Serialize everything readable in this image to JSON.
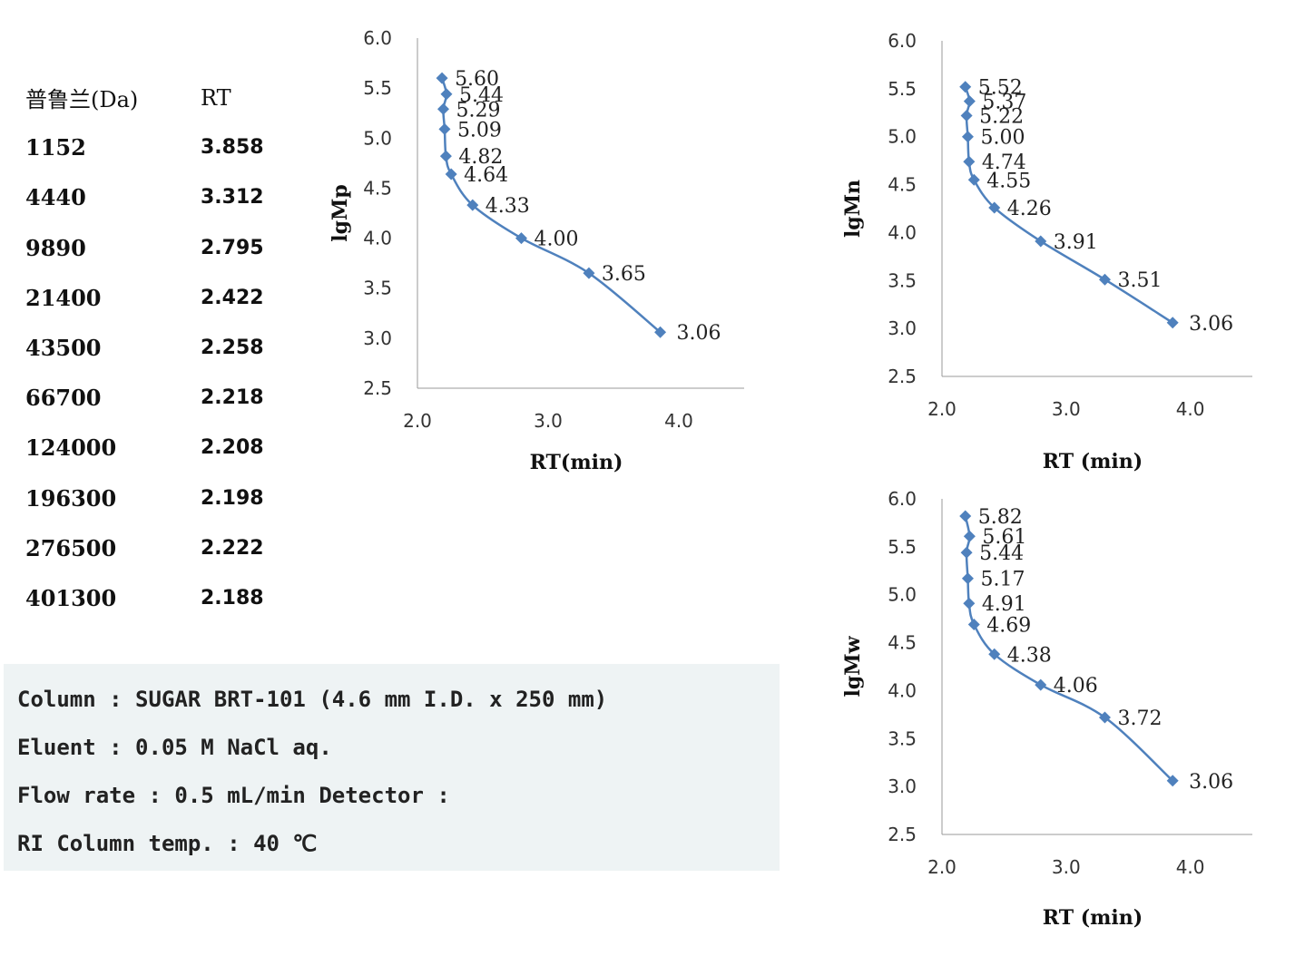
{
  "standards_table": {
    "header": {
      "name": "普鲁兰(Da)",
      "rt": "RT"
    },
    "rows": [
      {
        "mw": "1152",
        "rt": "3.858"
      },
      {
        "mw": "4440",
        "rt": "3.312"
      },
      {
        "mw": "9890",
        "rt": "2.795"
      },
      {
        "mw": "21400",
        "rt": "2.422"
      },
      {
        "mw": "43500",
        "rt": "2.258"
      },
      {
        "mw": "66700",
        "rt": "2.218"
      },
      {
        "mw": "124000",
        "rt": "2.208"
      },
      {
        "mw": "196300",
        "rt": "2.198"
      },
      {
        "mw": "276500",
        "rt": "2.222"
      },
      {
        "mw": "401300",
        "rt": "2.188"
      }
    ]
  },
  "conditions": [
    "Column : SUGAR BRT-101 (4.6 mm I.D. x 250 mm)",
    "Eluent : 0.05 M NaCl aq.",
    "Flow rate : 0.5 mL/min Detector :",
    "RI Column temp. : 40 ℃"
  ],
  "colors": {
    "series": "#4f81bd",
    "panel_bg": "#eef3f4"
  },
  "chart_data": [
    {
      "type": "line",
      "smooth": true,
      "marker": "diamond",
      "xlabel": "RT(min)",
      "ylabel": "lgMp",
      "xlim": [
        2.0,
        4.5
      ],
      "ylim": [
        2.5,
        6.0
      ],
      "xticks": [
        "2.0",
        "3.0",
        "4.0"
      ],
      "yticks": [
        "2.5",
        "3.0",
        "3.5",
        "4.0",
        "4.5",
        "5.0",
        "5.5",
        "6.0"
      ],
      "x": [
        2.188,
        2.222,
        2.198,
        2.208,
        2.218,
        2.258,
        2.422,
        2.795,
        3.312,
        3.858
      ],
      "y": [
        5.6,
        5.44,
        5.29,
        5.09,
        4.82,
        4.64,
        4.33,
        4.0,
        3.65,
        3.06
      ],
      "labels": [
        "5.60",
        "5.44",
        "5.29",
        "5.09",
        "4.82",
        "4.64",
        "4.33",
        "4.00",
        "3.65",
        "3.06"
      ]
    },
    {
      "type": "line",
      "smooth": true,
      "marker": "diamond",
      "xlabel": "RT (min)",
      "ylabel": "lgMn",
      "xlim": [
        2.0,
        4.5
      ],
      "ylim": [
        2.5,
        6.0
      ],
      "xticks": [
        "2.0",
        "3.0",
        "4.0"
      ],
      "yticks": [
        "2.5",
        "3.0",
        "3.5",
        "4.0",
        "4.5",
        "5.0",
        "5.5",
        "6.0"
      ],
      "x": [
        2.188,
        2.222,
        2.198,
        2.208,
        2.218,
        2.258,
        2.422,
        2.795,
        3.312,
        3.858
      ],
      "y": [
        5.52,
        5.37,
        5.22,
        5.0,
        4.74,
        4.55,
        4.26,
        3.91,
        3.51,
        3.06
      ],
      "labels": [
        "5.52",
        "5.37",
        "5.22",
        "5.00",
        "4.74",
        "4.55",
        "4.26",
        "3.91",
        "3.51",
        "3.06"
      ]
    },
    {
      "type": "line",
      "smooth": true,
      "marker": "diamond",
      "xlabel": "RT (min)",
      "ylabel": "lgMw",
      "xlim": [
        2.0,
        4.5
      ],
      "ylim": [
        2.5,
        6.0
      ],
      "xticks": [
        "2.0",
        "3.0",
        "4.0"
      ],
      "yticks": [
        "2.5",
        "3.0",
        "3.5",
        "4.0",
        "4.5",
        "5.0",
        "5.5",
        "6.0"
      ],
      "x": [
        2.188,
        2.222,
        2.198,
        2.208,
        2.218,
        2.258,
        2.422,
        2.795,
        3.312,
        3.858
      ],
      "y": [
        5.82,
        5.61,
        5.44,
        5.17,
        4.91,
        4.69,
        4.38,
        4.06,
        3.72,
        3.06
      ],
      "labels": [
        "5.82",
        "5.61",
        "5.44",
        "5.17",
        "4.91",
        "4.69",
        "4.38",
        "4.06",
        "3.72",
        "3.06"
      ]
    }
  ]
}
